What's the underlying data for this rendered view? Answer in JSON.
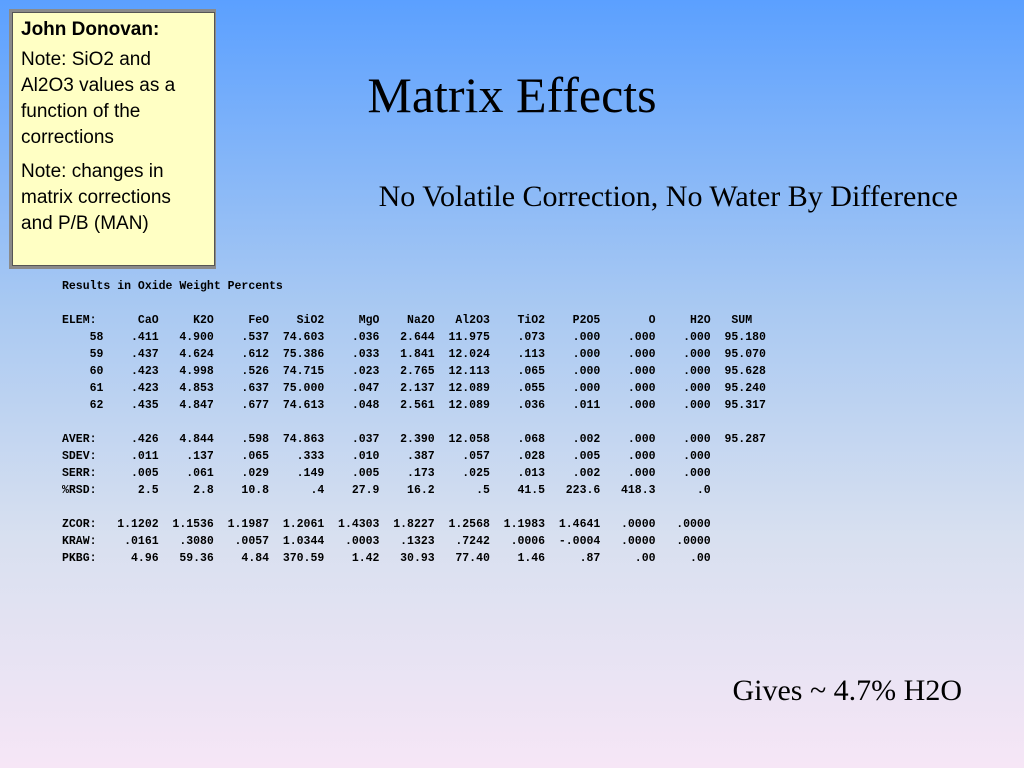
{
  "slide": {
    "title": "Matrix Effects",
    "subtitle": "No Volatile Correction, No Water By Difference",
    "footer": "Gives ~ 4.7% H2O"
  },
  "note": {
    "author": "John Donovan:",
    "paragraphs": [
      "Note: SiO2 and Al2O3 values as a function of the corrections",
      "Note: changes in matrix corrections and P/B (MAN)"
    ]
  },
  "results": {
    "lines": [
      "Results in Oxide Weight Percents",
      "",
      "ELEM:      CaO     K2O     FeO    SiO2     MgO    Na2O   Al2O3    TiO2    P2O5       O     H2O   SUM",
      "    58    .411   4.900    .537  74.603    .036   2.644  11.975    .073    .000    .000    .000  95.180",
      "    59    .437   4.624    .612  75.386    .033   1.841  12.024    .113    .000    .000    .000  95.070",
      "    60    .423   4.998    .526  74.715    .023   2.765  12.113    .065    .000    .000    .000  95.628",
      "    61    .423   4.853    .637  75.000    .047   2.137  12.089    .055    .000    .000    .000  95.240",
      "    62    .435   4.847    .677  74.613    .048   2.561  12.089    .036    .011    .000    .000  95.317",
      "",
      "AVER:     .426   4.844    .598  74.863    .037   2.390  12.058    .068    .002    .000    .000  95.287",
      "SDEV:     .011    .137    .065    .333    .010    .387    .057    .028    .005    .000    .000",
      "SERR:     .005    .061    .029    .149    .005    .173    .025    .013    .002    .000    .000",
      "%RSD:      2.5     2.8    10.8      .4    27.9    16.2      .5    41.5   223.6   418.3      .0",
      "",
      "ZCOR:   1.1202  1.1536  1.1987  1.2061  1.4303  1.8227  1.2568  1.1983  1.4641   .0000   .0000",
      "KRAW:    .0161   .3080   .0057  1.0344   .0003   .1323   .7242   .0006  -.0004   .0000   .0000",
      "PKBG:     4.96   59.36    4.84  370.59    1.42   30.93   77.40    1.46     .87     .00     .00"
    ]
  }
}
